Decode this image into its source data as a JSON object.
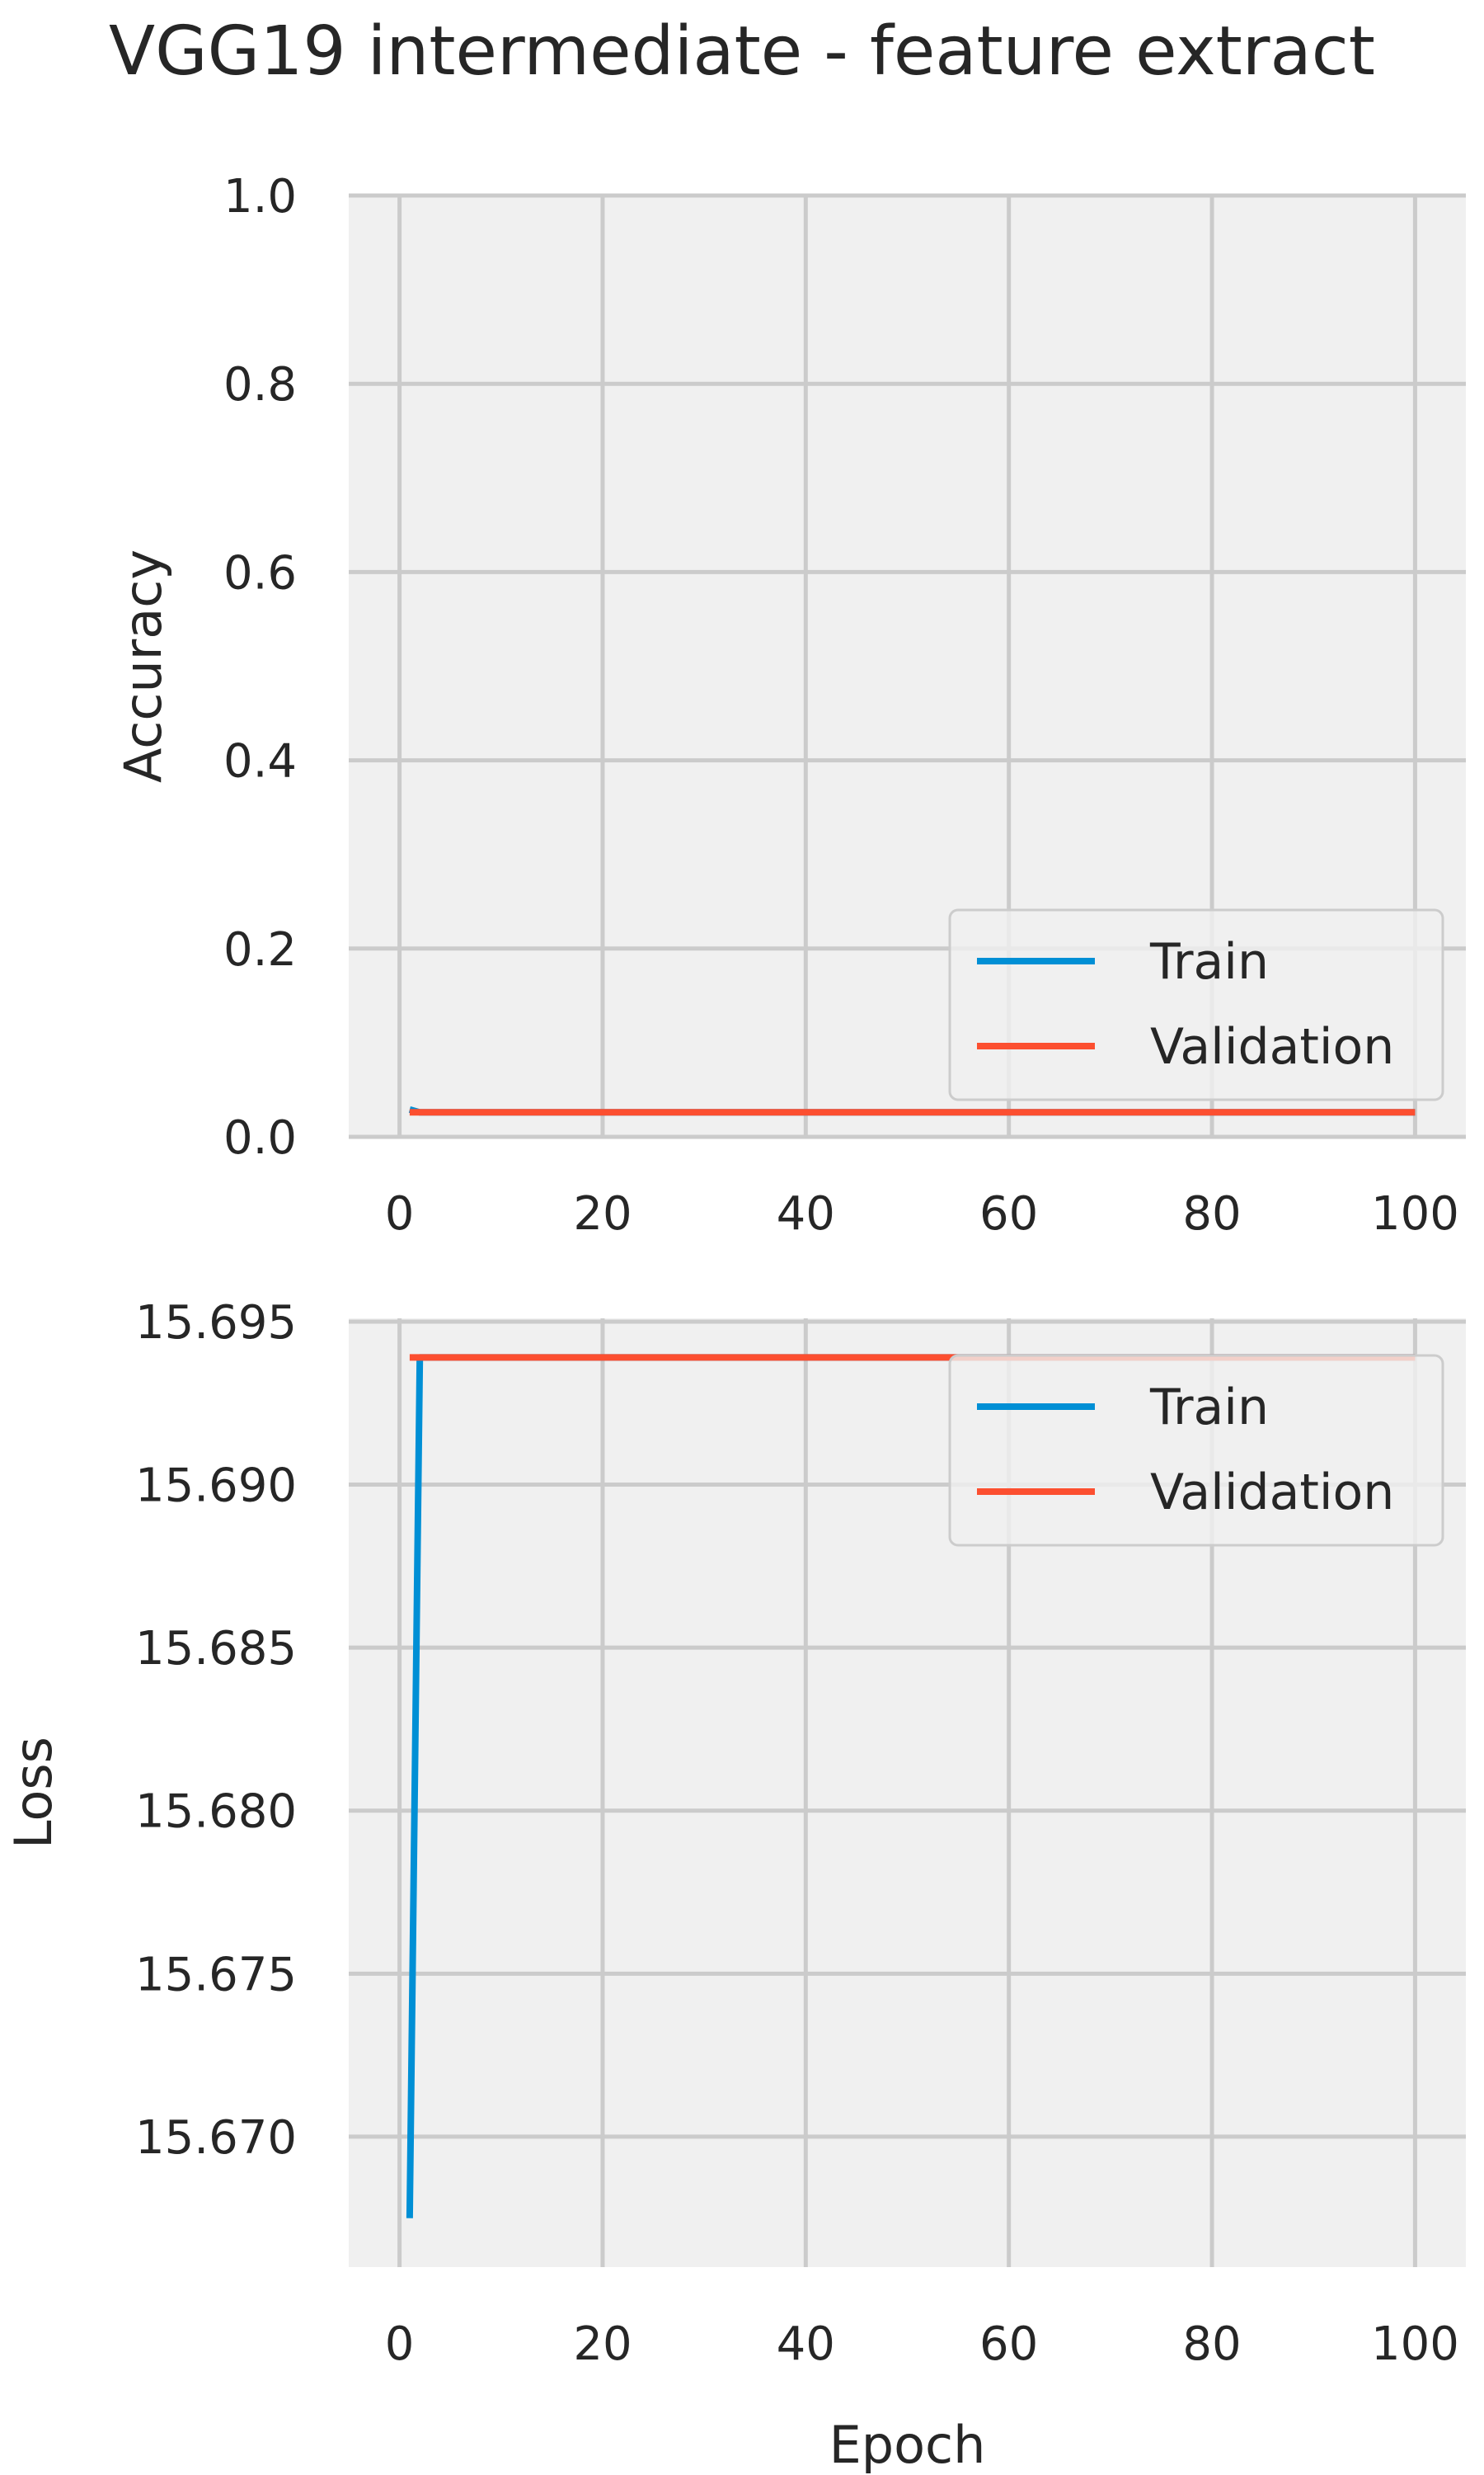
{
  "figure": {
    "title": "VGG19 intermediate - feature extract"
  },
  "chart_data": [
    {
      "type": "line",
      "title": "",
      "xlabel": "",
      "ylabel": "Accuracy",
      "xlim": [
        -5,
        105
      ],
      "ylim": [
        0.0,
        1.0
      ],
      "xticks": [
        0,
        20,
        40,
        60,
        80,
        100
      ],
      "xtick_labels": [
        "0",
        "20",
        "40",
        "60",
        "80",
        "100"
      ],
      "yticks": [
        0.0,
        0.2,
        0.4,
        0.6,
        0.8,
        1.0
      ],
      "ytick_labels": [
        "0.0",
        "0.2",
        "0.4",
        "0.6",
        "0.8",
        "1.0"
      ],
      "grid": true,
      "legend_position": "lower-right",
      "series": [
        {
          "name": "Train",
          "color": "#008fd5",
          "x": [
            1,
            2,
            100
          ],
          "y": [
            0.029,
            0.026,
            0.026
          ]
        },
        {
          "name": "Validation",
          "color": "#fc4f30",
          "x": [
            1,
            100
          ],
          "y": [
            0.026,
            0.026
          ]
        }
      ]
    },
    {
      "type": "line",
      "title": "",
      "xlabel": "Epoch",
      "ylabel": "Loss",
      "xlim": [
        -5,
        105
      ],
      "ylim": [
        15.666,
        15.6951
      ],
      "xticks": [
        0,
        20,
        40,
        60,
        80,
        100
      ],
      "xtick_labels": [
        "0",
        "20",
        "40",
        "60",
        "80",
        "100"
      ],
      "yticks": [
        15.67,
        15.675,
        15.68,
        15.685,
        15.69,
        15.695
      ],
      "ytick_labels": [
        "15.670",
        "15.675",
        "15.680",
        "15.685",
        "15.690",
        "15.695"
      ],
      "grid": true,
      "legend_position": "upper-right",
      "series": [
        {
          "name": "Train",
          "color": "#008fd5",
          "x": [
            1,
            2,
            100
          ],
          "y": [
            15.6675,
            15.6939,
            15.6939
          ]
        },
        {
          "name": "Validation",
          "color": "#fc4f30",
          "x": [
            1,
            100
          ],
          "y": [
            15.6939,
            15.6939
          ]
        }
      ]
    }
  ]
}
